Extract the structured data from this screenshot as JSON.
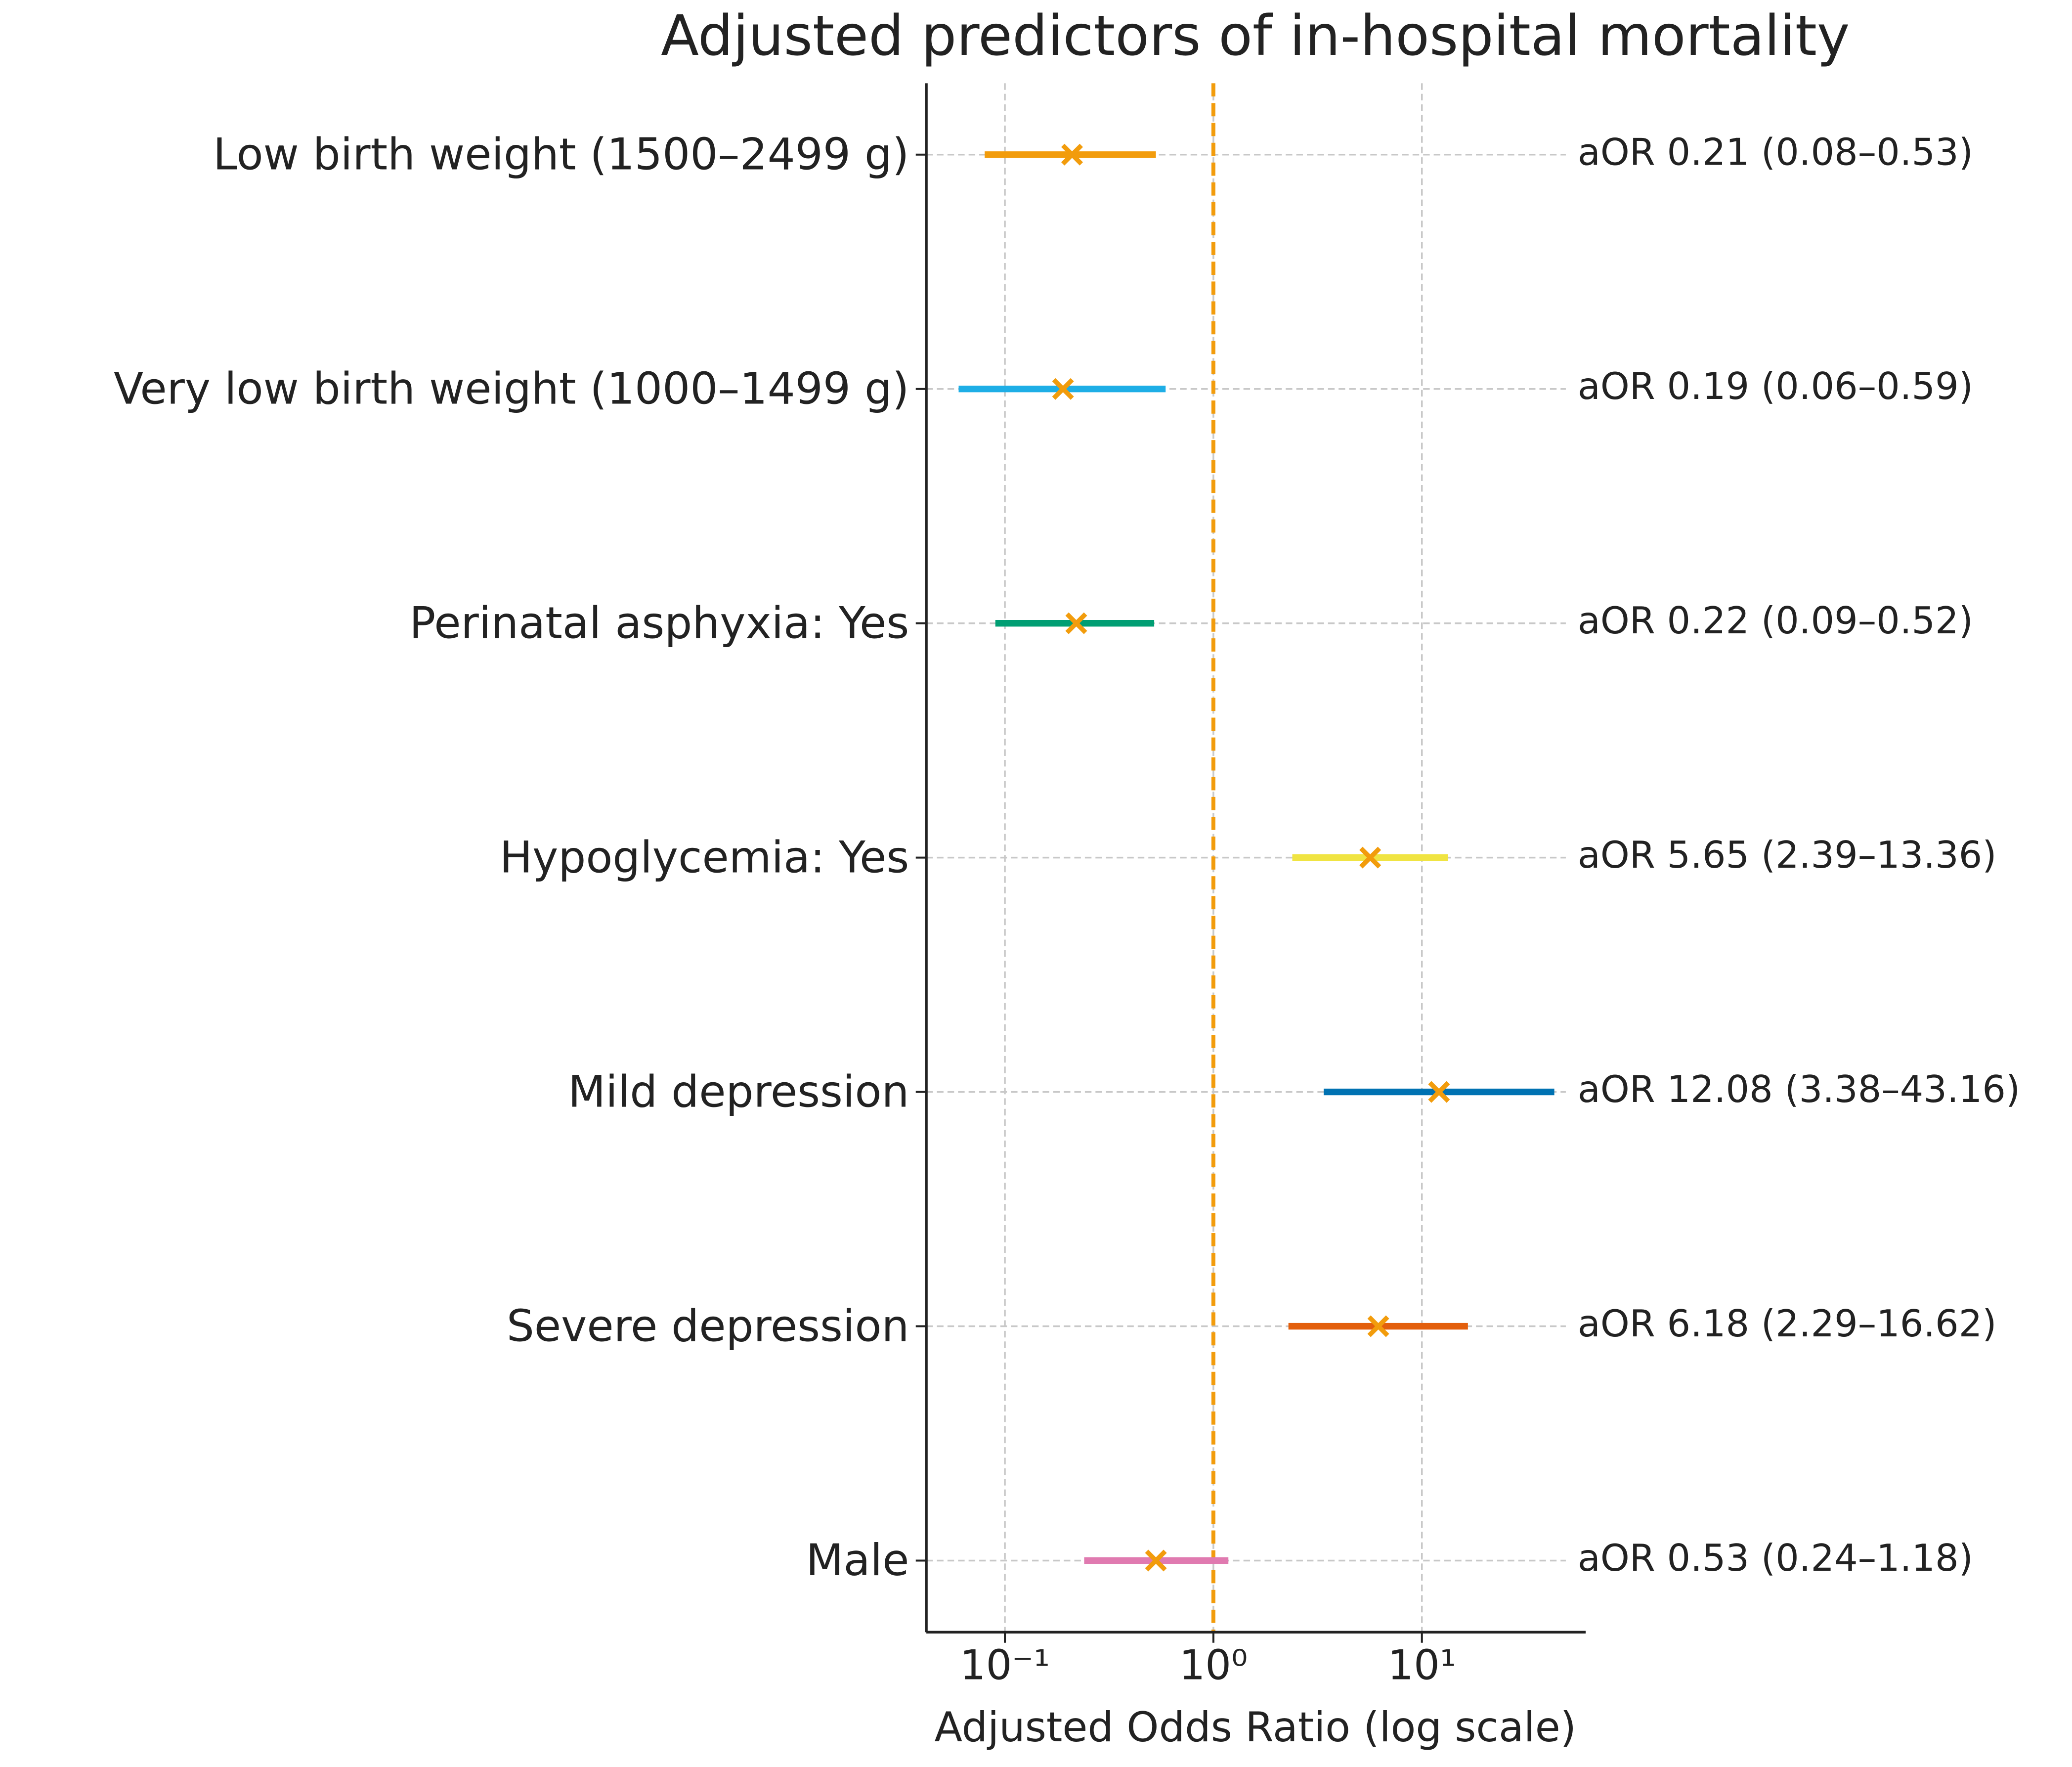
{
  "chart_data": {
    "type": "forest",
    "title": "Adjusted predictors of in-hospital mortality",
    "x_label": "Adjusted Odds Ratio (log scale)",
    "categories": [
      "Low birth weight (1500–2499 g)",
      "Very low birth weight (1000–1499 g)",
      "Perinatal asphyxia: Yes",
      "Hypoglycemia: Yes",
      "Mild depression",
      "Severe depression",
      "Male"
    ],
    "values": [
      0.21,
      0.19,
      0.22,
      5.65,
      12.08,
      6.18,
      0.53
    ],
    "lower": [
      0.08,
      0.06,
      0.09,
      2.39,
      3.38,
      2.29,
      0.24
    ],
    "upper": [
      0.53,
      0.59,
      0.52,
      13.36,
      43.16,
      16.62,
      1.18
    ],
    "value_labels": [
      "aOR 0.21 (0.08–0.53)",
      "aOR 0.19 (0.06–0.59)",
      "aOR 0.22 (0.09–0.52)",
      "aOR 5.65 (2.39–13.36)",
      "aOR 12.08 (3.38–43.16)",
      "aOR 6.18 (2.29–16.62)",
      "aOR 0.53 (0.24–1.18)"
    ],
    "colors": [
      "#f29c0c",
      "#1eaee6",
      "#009e73",
      "#f0e442",
      "#0072b2",
      "#e35f0c",
      "#e07ab0"
    ],
    "marker_color": "#f29c0c",
    "refline": 1,
    "refline_color": "#f29c0c",
    "x_log": true,
    "xlim": [
      0.042,
      61
    ],
    "xticks": [
      {
        "value": 0.1,
        "label": "10⁻¹"
      },
      {
        "value": 1,
        "label": "10⁰"
      },
      {
        "value": 10,
        "label": "10¹"
      }
    ],
    "grid": true
  }
}
